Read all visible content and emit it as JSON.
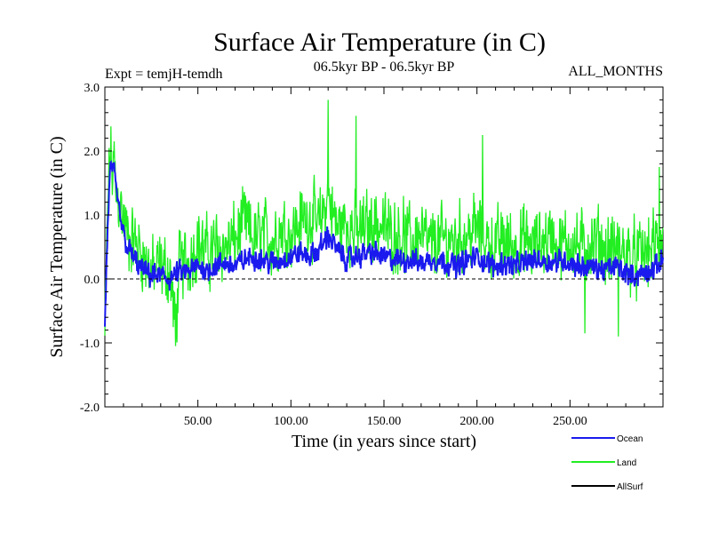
{
  "chart_data": {
    "type": "line",
    "title": "Surface Air Temperature (in C)",
    "subtitle_left": "Expt = temjH-temdh",
    "subtitle_center": "06.5kyr BP - 06.5kyr BP",
    "subtitle_right": "ALL_MONTHS",
    "xlabel": "Time (in years since start)",
    "ylabel": "Surface Air Temperature (in C)",
    "xlim": [
      0,
      300
    ],
    "ylim": [
      -2.0,
      3.0
    ],
    "xticks": [
      50,
      100,
      150,
      200,
      250
    ],
    "xtick_labels": [
      "50.00",
      "100.00",
      "150.00",
      "200.00",
      "250.00"
    ],
    "yticks": [
      -2.0,
      -1.0,
      0.0,
      1.0,
      2.0,
      3.0
    ],
    "ytick_labels": [
      "-2.0",
      "-1.0",
      "0.0",
      "1.0",
      "2.0",
      "3.0"
    ],
    "zero_line": true,
    "legend_position": "bottom-right",
    "series": [
      {
        "name": "Land",
        "color": "#22ee22",
        "x": [
          0,
          1,
          2,
          3,
          4,
          5,
          6,
          8,
          10,
          12,
          15,
          18,
          20,
          25,
          30,
          35,
          38,
          40,
          45,
          50,
          55,
          60,
          65,
          70,
          75,
          80,
          85,
          90,
          95,
          100,
          105,
          110,
          115,
          120,
          125,
          130,
          135,
          140,
          145,
          150,
          155,
          160,
          165,
          170,
          175,
          180,
          185,
          190,
          195,
          200,
          205,
          210,
          215,
          220,
          225,
          230,
          235,
          240,
          245,
          250,
          255,
          260,
          265,
          270,
          275,
          280,
          285,
          290,
          295,
          300
        ],
        "values": [
          -0.9,
          0.5,
          1.5,
          2.0,
          1.6,
          1.8,
          1.3,
          1.2,
          0.9,
          0.7,
          0.6,
          0.5,
          0.4,
          0.1,
          0.2,
          0.1,
          -0.8,
          0.2,
          0.3,
          0.6,
          0.4,
          0.5,
          0.5,
          0.6,
          0.9,
          0.6,
          0.7,
          0.6,
          0.8,
          0.7,
          0.9,
          1.0,
          0.8,
          1.3,
          0.8,
          0.9,
          0.7,
          0.8,
          0.9,
          0.8,
          0.7,
          0.7,
          0.6,
          0.7,
          0.5,
          0.6,
          0.6,
          0.6,
          0.7,
          0.8,
          0.6,
          0.5,
          0.6,
          0.5,
          0.6,
          0.5,
          0.6,
          0.7,
          0.5,
          0.6,
          0.5,
          0.5,
          0.6,
          0.4,
          0.5,
          0.4,
          0.3,
          0.4,
          0.5,
          0.6
        ],
        "noise_amplitude": 0.55,
        "spikes": [
          [
            5,
            2.15
          ],
          [
            120,
            2.8
          ],
          [
            135,
            2.55
          ],
          [
            203,
            2.25
          ],
          [
            298,
            1.75
          ],
          [
            38,
            -1.05
          ],
          [
            276,
            -0.9
          ],
          [
            258,
            -0.85
          ]
        ]
      },
      {
        "name": "Ocean",
        "color": "#1a1aee",
        "x": [
          0,
          1,
          2,
          3,
          4,
          5,
          6,
          8,
          10,
          12,
          15,
          18,
          20,
          25,
          30,
          35,
          40,
          45,
          50,
          55,
          60,
          65,
          70,
          75,
          80,
          85,
          90,
          95,
          100,
          105,
          110,
          115,
          120,
          125,
          130,
          135,
          140,
          145,
          150,
          155,
          160,
          165,
          170,
          175,
          180,
          185,
          190,
          195,
          200,
          205,
          210,
          215,
          220,
          225,
          230,
          235,
          240,
          245,
          250,
          255,
          260,
          265,
          270,
          275,
          280,
          285,
          290,
          295,
          300
        ],
        "values": [
          -0.7,
          0.3,
          1.2,
          1.7,
          1.75,
          1.6,
          1.4,
          1.0,
          0.7,
          0.5,
          0.35,
          0.2,
          0.15,
          0.05,
          0.05,
          0.0,
          0.1,
          0.1,
          0.2,
          0.15,
          0.2,
          0.25,
          0.2,
          0.3,
          0.35,
          0.3,
          0.25,
          0.3,
          0.35,
          0.4,
          0.35,
          0.45,
          0.7,
          0.45,
          0.3,
          0.35,
          0.4,
          0.4,
          0.35,
          0.3,
          0.3,
          0.3,
          0.25,
          0.3,
          0.3,
          0.25,
          0.2,
          0.3,
          0.35,
          0.25,
          0.2,
          0.25,
          0.2,
          0.25,
          0.3,
          0.3,
          0.25,
          0.3,
          0.25,
          0.2,
          0.2,
          0.15,
          0.15,
          0.2,
          0.1,
          0.05,
          0.1,
          0.15,
          0.3
        ],
        "noise_amplitude": 0.18,
        "spikes": []
      },
      {
        "name": "AllSurf",
        "color": "#000000",
        "x": [],
        "values": []
      }
    ]
  }
}
